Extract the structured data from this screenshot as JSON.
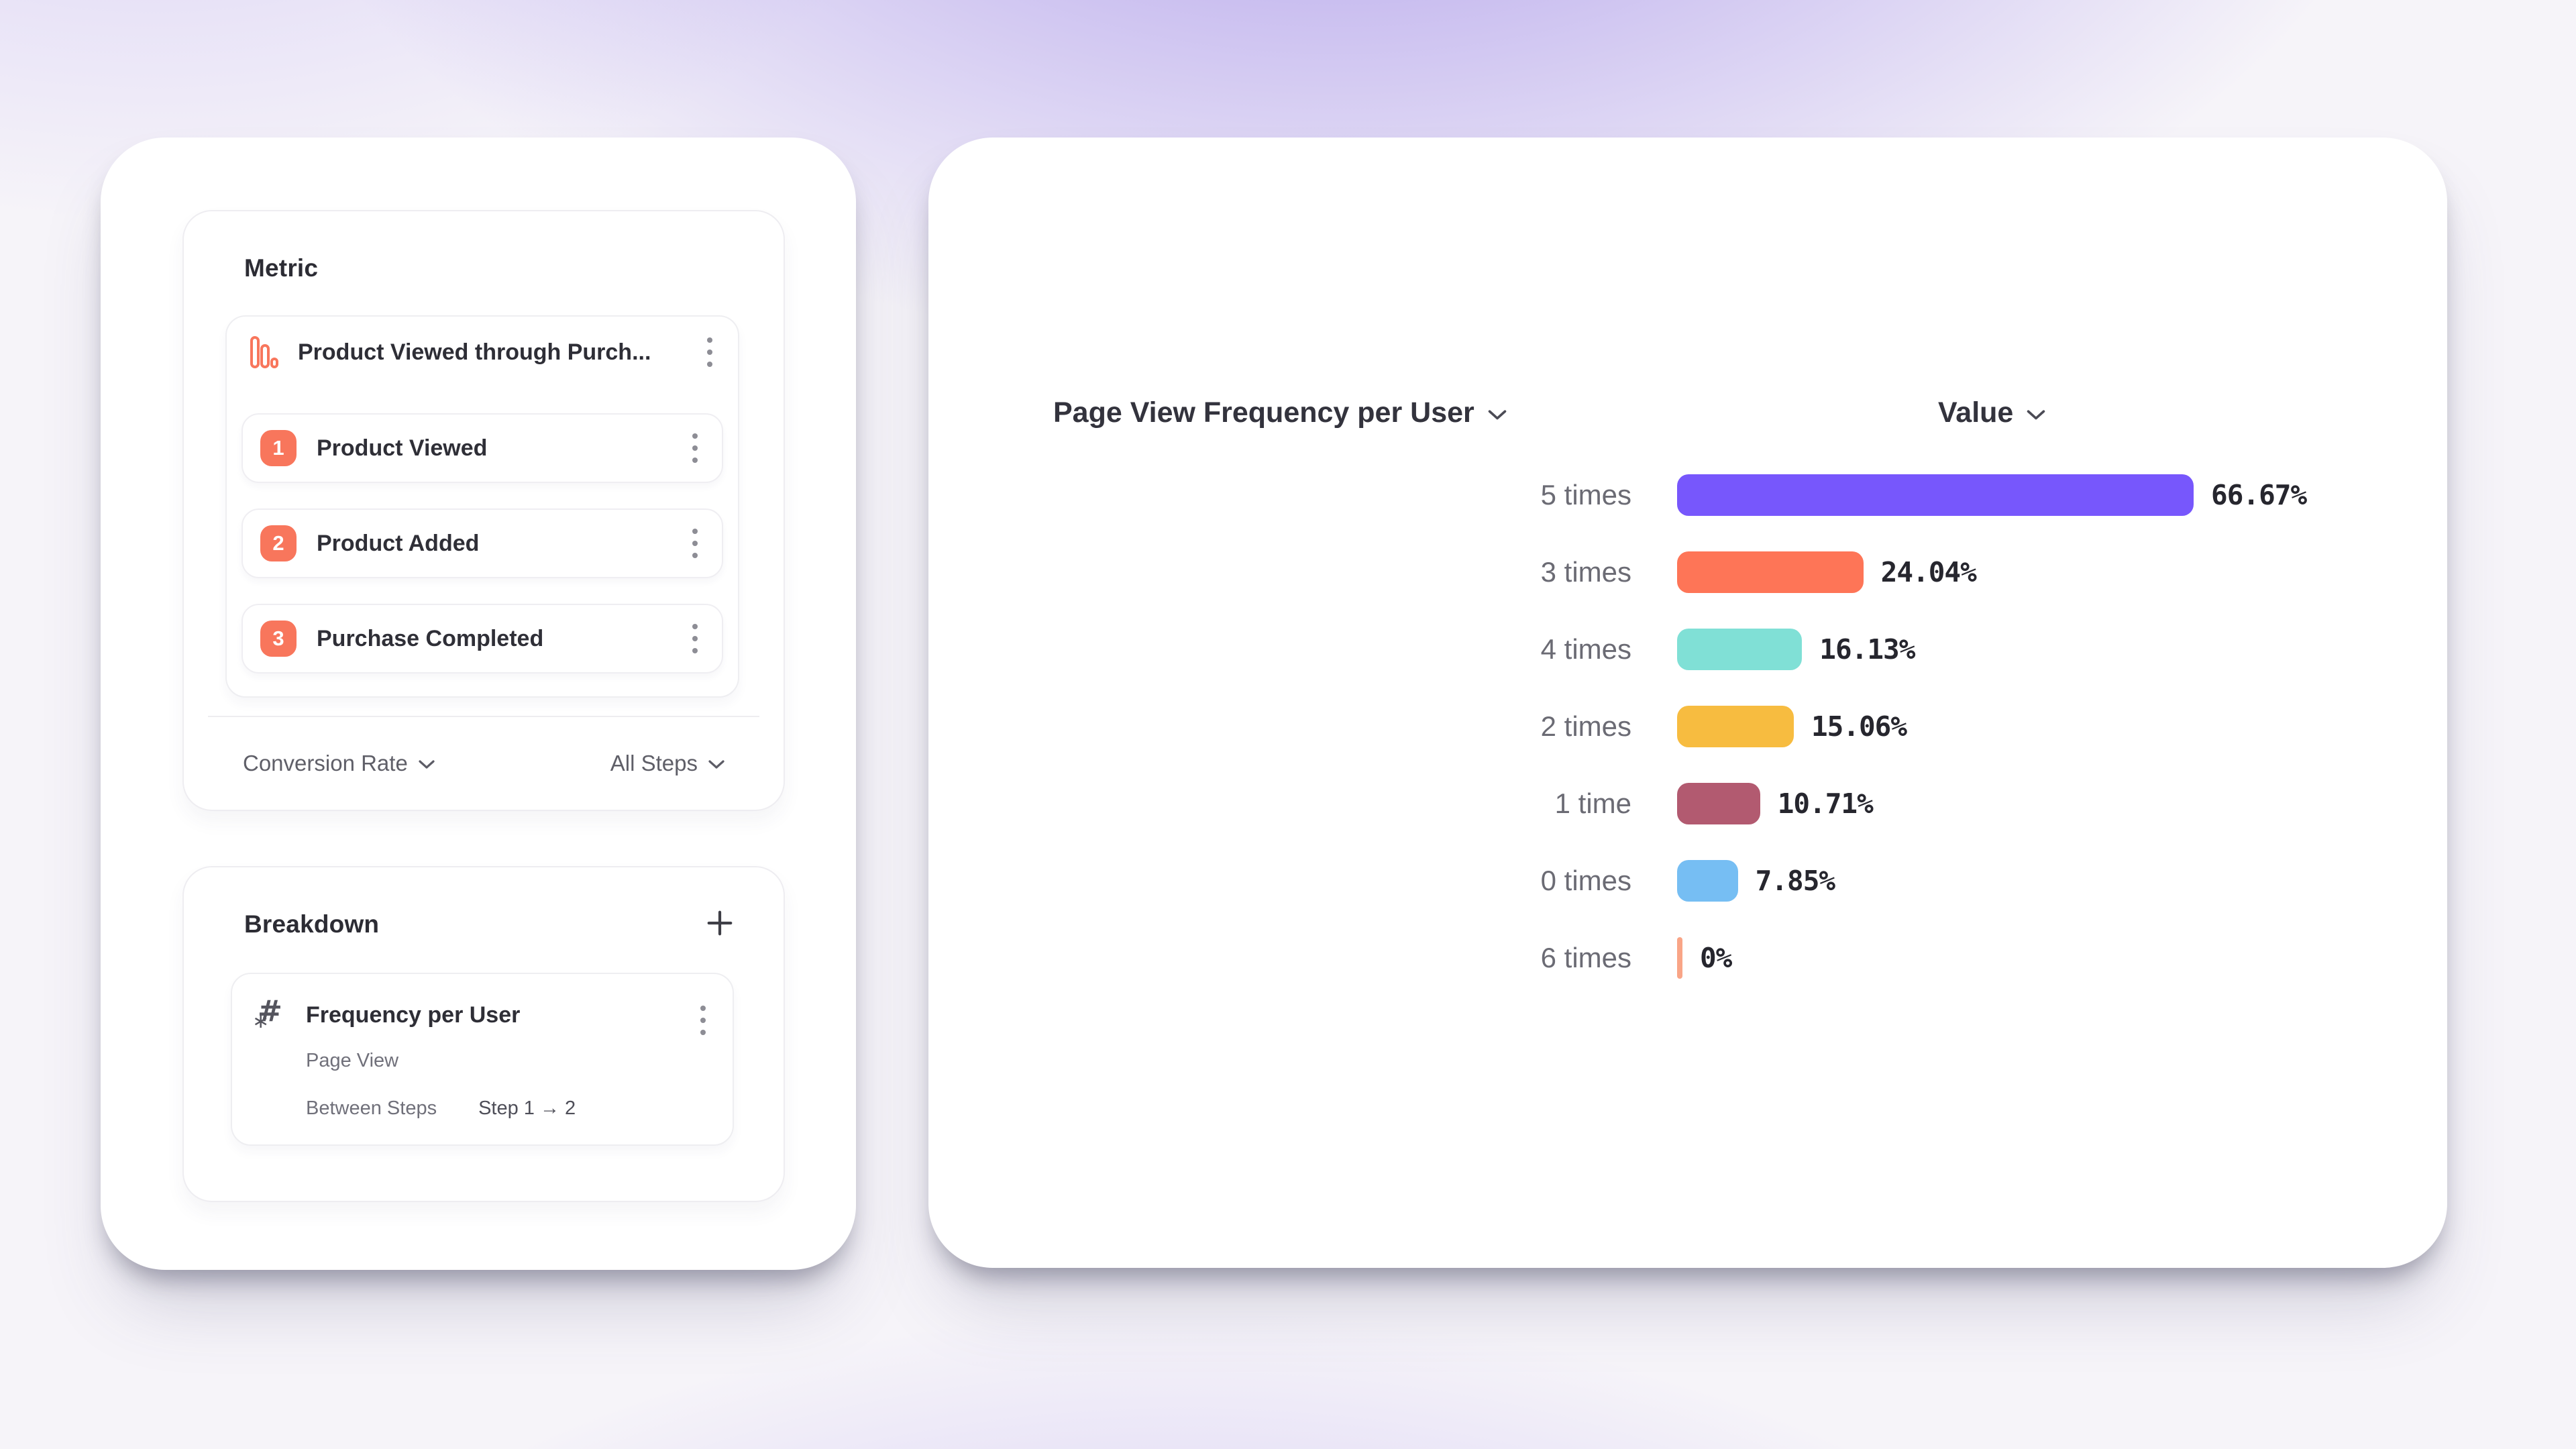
{
  "colors": {
    "badge": "#F8765C",
    "funnel_icon": "#F8765C",
    "purple": "#7757FC",
    "coral": "#FE7557",
    "teal": "#80E0D6",
    "amber": "#F7BC40",
    "plum": "#B25A70",
    "blue": "#76BEF3",
    "salmon": "#F9A587"
  },
  "metric_panel": {
    "title": "Metric",
    "metric": {
      "name": "Product Viewed through Purch...",
      "icon": "funnel-chart-icon",
      "steps": [
        {
          "number": "1",
          "label": "Product Viewed"
        },
        {
          "number": "2",
          "label": "Product Added"
        },
        {
          "number": "3",
          "label": "Purchase Completed"
        }
      ]
    },
    "footer": {
      "measure": "Conversion Rate",
      "scope": "All Steps"
    }
  },
  "breakdown_panel": {
    "title": "Breakdown",
    "add_label": "+",
    "item": {
      "name": "Frequency per User",
      "icon": "number-property-icon",
      "event": "Page View",
      "between_label": "Between Steps",
      "between_value": "Step 1 → 2"
    }
  },
  "chart_header": {
    "series": "Page View Frequency per User",
    "value": "Value"
  },
  "chart_data": {
    "type": "bar",
    "orientation": "horizontal",
    "title": "Page View Frequency per User",
    "value_axis_label": "Value",
    "unit": "%",
    "categories": [
      "5 times",
      "3 times",
      "4 times",
      "2 times",
      "1 time",
      "0 times",
      "6 times"
    ],
    "values": [
      66.67,
      24.04,
      16.13,
      15.06,
      10.71,
      7.85,
      0
    ],
    "value_labels": [
      "66.67%",
      "24.04%",
      "16.13%",
      "15.06%",
      "10.71%",
      "7.85%",
      "0%"
    ],
    "bar_colors": [
      "#7757FC",
      "#FE7557",
      "#80E0D6",
      "#F7BC40",
      "#B25A70",
      "#76BEF3",
      "#F9A587"
    ],
    "axis_max": 100,
    "gridlines": false,
    "legend": false
  }
}
